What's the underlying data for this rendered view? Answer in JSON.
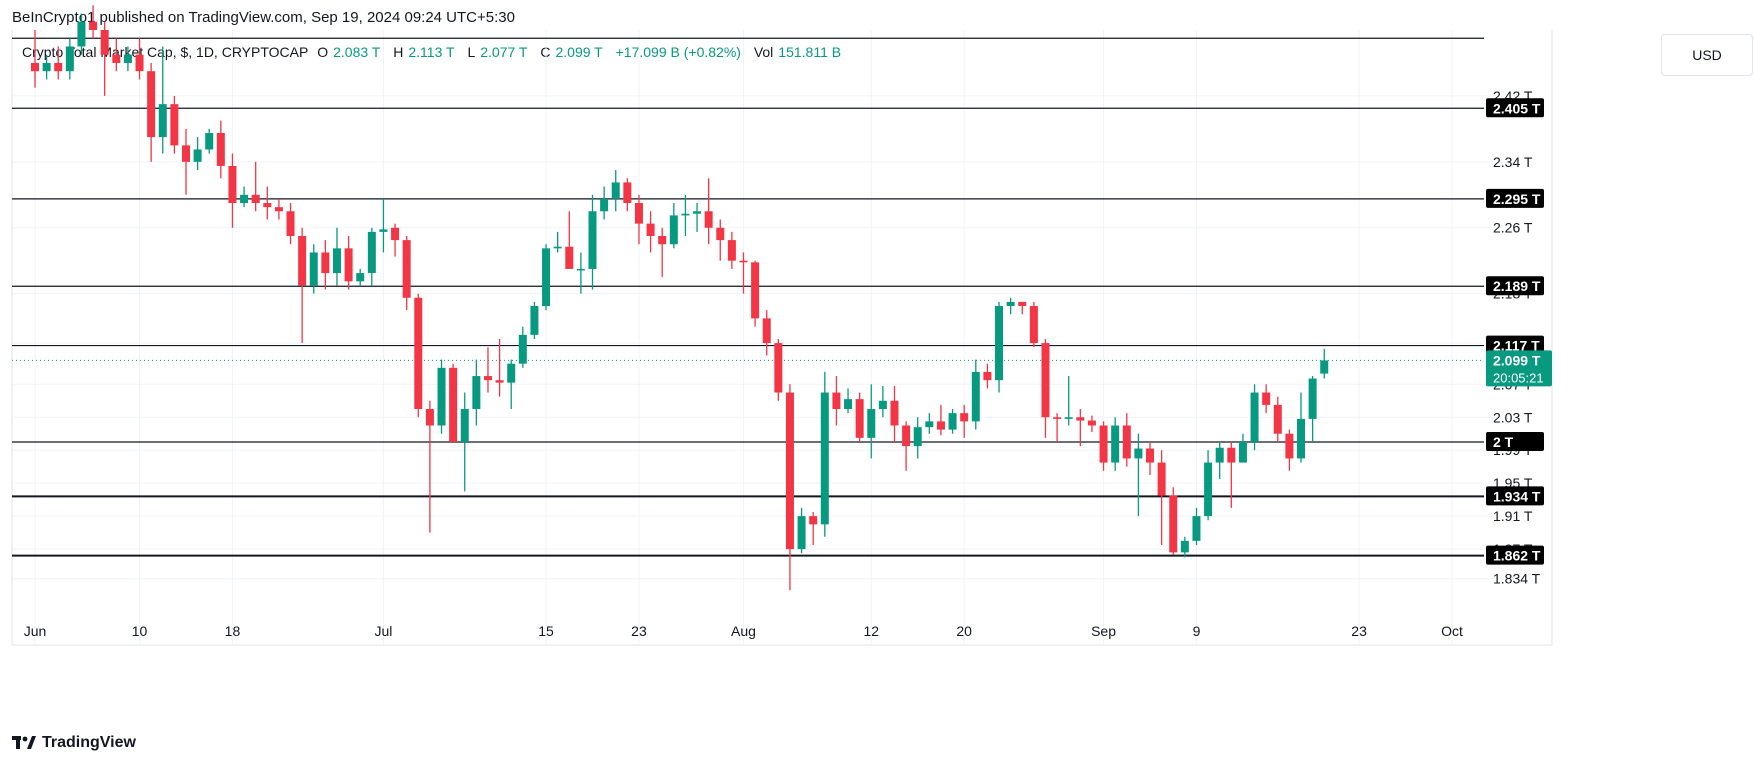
{
  "header": {
    "publisher": "BeInCrypto1 published on TradingView.com, Sep 19, 2024 09:24 UTC+5:30"
  },
  "legend": {
    "symbol": "Crypto Total Market Cap, $, 1D, CRYPTOCAP",
    "open_label": "O",
    "open": "2.083 T",
    "high_label": "H",
    "high": "2.113 T",
    "low_label": "L",
    "low": "2.077 T",
    "close_label": "C",
    "close": "2.099 T",
    "change": "+17.099 B (+0.82%)",
    "vol_label": "Vol",
    "vol": "151.811 B"
  },
  "currency": "USD",
  "footer": {
    "brand": "TradingView",
    "icon": "tradingview-logo-icon"
  },
  "colors": {
    "up": "#089981",
    "down": "#f23645",
    "line": "#131722",
    "grid": "#f0f3fa"
  },
  "chart_data": {
    "type": "candlestick",
    "title": "Crypto Total Market Cap, $, 1D, CRYPTOCAP",
    "ylabel": "USD",
    "ylim": [
      1.79,
      2.5
    ],
    "grid": true,
    "price_ticks": [
      "2.42 T",
      "2.34 T",
      "2.26 T",
      "2.18 T",
      "2.12 T",
      "2.07 T",
      "2.03 T",
      "1.99 T",
      "1.95 T",
      "1.91 T",
      "1.87 T",
      "1.834 T"
    ],
    "date_ticks": [
      {
        "label": "Jun",
        "date": "2024-06-01"
      },
      {
        "label": "10",
        "date": "2024-06-10"
      },
      {
        "label": "18",
        "date": "2024-06-18"
      },
      {
        "label": "Jul",
        "date": "2024-07-01"
      },
      {
        "label": "15",
        "date": "2024-07-15"
      },
      {
        "label": "23",
        "date": "2024-07-23"
      },
      {
        "label": "Aug",
        "date": "2024-08-01"
      },
      {
        "label": "12",
        "date": "2024-08-12"
      },
      {
        "label": "20",
        "date": "2024-08-20"
      },
      {
        "label": "Sep",
        "date": "2024-09-01"
      },
      {
        "label": "9",
        "date": "2024-09-09"
      },
      {
        "label": "23",
        "date": "2024-09-23"
      },
      {
        "label": "Oct",
        "date": "2024-10-01"
      }
    ],
    "horizontal_levels": [
      {
        "value": 2.405,
        "label": "2.405 T"
      },
      {
        "value": 2.295,
        "label": "2.295 T"
      },
      {
        "value": 2.189,
        "label": "2.189 T"
      },
      {
        "value": 2.117,
        "label": "2.117 T"
      },
      {
        "value": 2.0,
        "label": "2 T"
      },
      {
        "value": 1.934,
        "label": "1.934 T"
      },
      {
        "value": 1.862,
        "label": "1.862 T"
      }
    ],
    "top_level": 2.49,
    "current_price": {
      "value": 2.099,
      "label": "2.099 T",
      "countdown": "20:05:21"
    },
    "candles": [
      {
        "date": "2024-06-01",
        "o": 2.46,
        "h": 2.5,
        "l": 2.43,
        "c": 2.45
      },
      {
        "date": "2024-06-02",
        "o": 2.45,
        "h": 2.47,
        "l": 2.44,
        "c": 2.46
      },
      {
        "date": "2024-06-03",
        "o": 2.46,
        "h": 2.48,
        "l": 2.44,
        "c": 2.45
      },
      {
        "date": "2024-06-04",
        "o": 2.45,
        "h": 2.49,
        "l": 2.44,
        "c": 2.48
      },
      {
        "date": "2024-06-05",
        "o": 2.48,
        "h": 2.52,
        "l": 2.47,
        "c": 2.51
      },
      {
        "date": "2024-06-06",
        "o": 2.51,
        "h": 2.53,
        "l": 2.49,
        "c": 2.5
      },
      {
        "date": "2024-06-07",
        "o": 2.5,
        "h": 2.51,
        "l": 2.42,
        "c": 2.47
      },
      {
        "date": "2024-06-08",
        "o": 2.47,
        "h": 2.49,
        "l": 2.45,
        "c": 2.46
      },
      {
        "date": "2024-06-09",
        "o": 2.46,
        "h": 2.48,
        "l": 2.45,
        "c": 2.47
      },
      {
        "date": "2024-06-10",
        "o": 2.47,
        "h": 2.49,
        "l": 2.44,
        "c": 2.45
      },
      {
        "date": "2024-06-11",
        "o": 2.45,
        "h": 2.46,
        "l": 2.34,
        "c": 2.37
      },
      {
        "date": "2024-06-12",
        "o": 2.37,
        "h": 2.48,
        "l": 2.35,
        "c": 2.41
      },
      {
        "date": "2024-06-13",
        "o": 2.41,
        "h": 2.42,
        "l": 2.35,
        "c": 2.36
      },
      {
        "date": "2024-06-14",
        "o": 2.36,
        "h": 2.38,
        "l": 2.3,
        "c": 2.34
      },
      {
        "date": "2024-06-15",
        "o": 2.34,
        "h": 2.37,
        "l": 2.33,
        "c": 2.355
      },
      {
        "date": "2024-06-16",
        "o": 2.355,
        "h": 2.38,
        "l": 2.35,
        "c": 2.375
      },
      {
        "date": "2024-06-17",
        "o": 2.375,
        "h": 2.39,
        "l": 2.32,
        "c": 2.335
      },
      {
        "date": "2024-06-18",
        "o": 2.335,
        "h": 2.35,
        "l": 2.26,
        "c": 2.29
      },
      {
        "date": "2024-06-19",
        "o": 2.29,
        "h": 2.31,
        "l": 2.285,
        "c": 2.3
      },
      {
        "date": "2024-06-20",
        "o": 2.3,
        "h": 2.34,
        "l": 2.28,
        "c": 2.29
      },
      {
        "date": "2024-06-21",
        "o": 2.29,
        "h": 2.31,
        "l": 2.27,
        "c": 2.285
      },
      {
        "date": "2024-06-22",
        "o": 2.285,
        "h": 2.295,
        "l": 2.27,
        "c": 2.28
      },
      {
        "date": "2024-06-23",
        "o": 2.28,
        "h": 2.29,
        "l": 2.24,
        "c": 2.25
      },
      {
        "date": "2024-06-24",
        "o": 2.25,
        "h": 2.26,
        "l": 2.12,
        "c": 2.19
      },
      {
        "date": "2024-06-25",
        "o": 2.19,
        "h": 2.24,
        "l": 2.18,
        "c": 2.23
      },
      {
        "date": "2024-06-26",
        "o": 2.23,
        "h": 2.245,
        "l": 2.185,
        "c": 2.205
      },
      {
        "date": "2024-06-27",
        "o": 2.205,
        "h": 2.26,
        "l": 2.19,
        "c": 2.235
      },
      {
        "date": "2024-06-28",
        "o": 2.235,
        "h": 2.25,
        "l": 2.185,
        "c": 2.195
      },
      {
        "date": "2024-06-29",
        "o": 2.195,
        "h": 2.21,
        "l": 2.19,
        "c": 2.205
      },
      {
        "date": "2024-06-30",
        "o": 2.205,
        "h": 2.26,
        "l": 2.19,
        "c": 2.255
      },
      {
        "date": "2024-07-01",
        "o": 2.255,
        "h": 2.295,
        "l": 2.23,
        "c": 2.258
      },
      {
        "date": "2024-07-02",
        "o": 2.26,
        "h": 2.265,
        "l": 2.225,
        "c": 2.245
      },
      {
        "date": "2024-07-03",
        "o": 2.245,
        "h": 2.25,
        "l": 2.16,
        "c": 2.175
      },
      {
        "date": "2024-07-04",
        "o": 2.175,
        "h": 2.18,
        "l": 2.03,
        "c": 2.04
      },
      {
        "date": "2024-07-05",
        "o": 2.04,
        "h": 2.05,
        "l": 1.89,
        "c": 2.02
      },
      {
        "date": "2024-07-06",
        "o": 2.02,
        "h": 2.1,
        "l": 2.01,
        "c": 2.09
      },
      {
        "date": "2024-07-07",
        "o": 2.09,
        "h": 2.095,
        "l": 2.0,
        "c": 2.0
      },
      {
        "date": "2024-07-08",
        "o": 2.0,
        "h": 2.06,
        "l": 1.94,
        "c": 2.04
      },
      {
        "date": "2024-07-09",
        "o": 2.04,
        "h": 2.1,
        "l": 2.02,
        "c": 2.08
      },
      {
        "date": "2024-07-10",
        "o": 2.08,
        "h": 2.115,
        "l": 2.06,
        "c": 2.075
      },
      {
        "date": "2024-07-11",
        "o": 2.075,
        "h": 2.125,
        "l": 2.055,
        "c": 2.072
      },
      {
        "date": "2024-07-12",
        "o": 2.072,
        "h": 2.1,
        "l": 2.04,
        "c": 2.095
      },
      {
        "date": "2024-07-13",
        "o": 2.095,
        "h": 2.14,
        "l": 2.09,
        "c": 2.13
      },
      {
        "date": "2024-07-14",
        "o": 2.13,
        "h": 2.17,
        "l": 2.125,
        "c": 2.165
      },
      {
        "date": "2024-07-15",
        "o": 2.165,
        "h": 2.24,
        "l": 2.16,
        "c": 2.235
      },
      {
        "date": "2024-07-16",
        "o": 2.235,
        "h": 2.255,
        "l": 2.23,
        "c": 2.237
      },
      {
        "date": "2024-07-17",
        "o": 2.237,
        "h": 2.28,
        "l": 2.215,
        "c": 2.21
      },
      {
        "date": "2024-07-18",
        "o": 2.21,
        "h": 2.23,
        "l": 2.18,
        "c": 2.21
      },
      {
        "date": "2024-07-19",
        "o": 2.21,
        "h": 2.3,
        "l": 2.185,
        "c": 2.28
      },
      {
        "date": "2024-07-20",
        "o": 2.28,
        "h": 2.31,
        "l": 2.27,
        "c": 2.295
      },
      {
        "date": "2024-07-21",
        "o": 2.295,
        "h": 2.33,
        "l": 2.28,
        "c": 2.315
      },
      {
        "date": "2024-07-22",
        "o": 2.315,
        "h": 2.32,
        "l": 2.28,
        "c": 2.29
      },
      {
        "date": "2024-07-23",
        "o": 2.29,
        "h": 2.3,
        "l": 2.24,
        "c": 2.265
      },
      {
        "date": "2024-07-24",
        "o": 2.265,
        "h": 2.28,
        "l": 2.23,
        "c": 2.25
      },
      {
        "date": "2024-07-25",
        "o": 2.25,
        "h": 2.26,
        "l": 2.2,
        "c": 2.24
      },
      {
        "date": "2024-07-26",
        "o": 2.24,
        "h": 2.29,
        "l": 2.235,
        "c": 2.275
      },
      {
        "date": "2024-07-27",
        "o": 2.275,
        "h": 2.3,
        "l": 2.25,
        "c": 2.277
      },
      {
        "date": "2024-07-28",
        "o": 2.277,
        "h": 2.29,
        "l": 2.255,
        "c": 2.28
      },
      {
        "date": "2024-07-29",
        "o": 2.28,
        "h": 2.32,
        "l": 2.24,
        "c": 2.26
      },
      {
        "date": "2024-07-30",
        "o": 2.26,
        "h": 2.27,
        "l": 2.22,
        "c": 2.245
      },
      {
        "date": "2024-07-31",
        "o": 2.245,
        "h": 2.255,
        "l": 2.21,
        "c": 2.22
      },
      {
        "date": "2024-08-01",
        "o": 2.22,
        "h": 2.23,
        "l": 2.18,
        "c": 2.218
      },
      {
        "date": "2024-08-02",
        "o": 2.218,
        "h": 2.22,
        "l": 2.14,
        "c": 2.15
      },
      {
        "date": "2024-08-03",
        "o": 2.15,
        "h": 2.16,
        "l": 2.105,
        "c": 2.12
      },
      {
        "date": "2024-08-04",
        "o": 2.12,
        "h": 2.125,
        "l": 2.05,
        "c": 2.06
      },
      {
        "date": "2024-08-05",
        "o": 2.06,
        "h": 2.07,
        "l": 1.82,
        "c": 1.87
      },
      {
        "date": "2024-08-06",
        "o": 1.87,
        "h": 1.92,
        "l": 1.865,
        "c": 1.91
      },
      {
        "date": "2024-08-07",
        "o": 1.91,
        "h": 1.915,
        "l": 1.875,
        "c": 1.9
      },
      {
        "date": "2024-08-08",
        "o": 1.9,
        "h": 2.085,
        "l": 1.885,
        "c": 2.06
      },
      {
        "date": "2024-08-09",
        "o": 2.06,
        "h": 2.08,
        "l": 2.02,
        "c": 2.04
      },
      {
        "date": "2024-08-10",
        "o": 2.04,
        "h": 2.065,
        "l": 2.035,
        "c": 2.052
      },
      {
        "date": "2024-08-11",
        "o": 2.052,
        "h": 2.06,
        "l": 2.0,
        "c": 2.005
      },
      {
        "date": "2024-08-12",
        "o": 2.005,
        "h": 2.07,
        "l": 1.98,
        "c": 2.04
      },
      {
        "date": "2024-08-13",
        "o": 2.04,
        "h": 2.068,
        "l": 2.03,
        "c": 2.05
      },
      {
        "date": "2024-08-14",
        "o": 2.05,
        "h": 2.068,
        "l": 2.0,
        "c": 2.02
      },
      {
        "date": "2024-08-15",
        "o": 2.02,
        "h": 2.025,
        "l": 1.965,
        "c": 1.995
      },
      {
        "date": "2024-08-16",
        "o": 1.995,
        "h": 2.03,
        "l": 1.98,
        "c": 2.018
      },
      {
        "date": "2024-08-17",
        "o": 2.018,
        "h": 2.035,
        "l": 2.01,
        "c": 2.025
      },
      {
        "date": "2024-08-18",
        "o": 2.025,
        "h": 2.045,
        "l": 2.008,
        "c": 2.015
      },
      {
        "date": "2024-08-19",
        "o": 2.015,
        "h": 2.04,
        "l": 2.01,
        "c": 2.035
      },
      {
        "date": "2024-08-20",
        "o": 2.035,
        "h": 2.045,
        "l": 2.005,
        "c": 2.025
      },
      {
        "date": "2024-08-21",
        "o": 2.025,
        "h": 2.1,
        "l": 2.015,
        "c": 2.085
      },
      {
        "date": "2024-08-22",
        "o": 2.085,
        "h": 2.095,
        "l": 2.065,
        "c": 2.075
      },
      {
        "date": "2024-08-23",
        "o": 2.075,
        "h": 2.17,
        "l": 2.06,
        "c": 2.165
      },
      {
        "date": "2024-08-24",
        "o": 2.165,
        "h": 2.175,
        "l": 2.155,
        "c": 2.17
      },
      {
        "date": "2024-08-25",
        "o": 2.17,
        "h": 2.17,
        "l": 2.155,
        "c": 2.165
      },
      {
        "date": "2024-08-26",
        "o": 2.165,
        "h": 2.17,
        "l": 2.115,
        "c": 2.12
      },
      {
        "date": "2024-08-27",
        "o": 2.12,
        "h": 2.125,
        "l": 2.005,
        "c": 2.03
      },
      {
        "date": "2024-08-28",
        "o": 2.03,
        "h": 2.035,
        "l": 2.0,
        "c": 2.028
      },
      {
        "date": "2024-08-29",
        "o": 2.028,
        "h": 2.08,
        "l": 2.02,
        "c": 2.03
      },
      {
        "date": "2024-08-30",
        "o": 2.03,
        "h": 2.04,
        "l": 1.995,
        "c": 2.026
      },
      {
        "date": "2024-08-31",
        "o": 2.026,
        "h": 2.032,
        "l": 2.012,
        "c": 2.02
      },
      {
        "date": "2024-09-01",
        "o": 2.02,
        "h": 2.025,
        "l": 1.965,
        "c": 1.975
      },
      {
        "date": "2024-09-02",
        "o": 1.975,
        "h": 2.03,
        "l": 1.965,
        "c": 2.02
      },
      {
        "date": "2024-09-03",
        "o": 2.02,
        "h": 2.035,
        "l": 1.97,
        "c": 1.98
      },
      {
        "date": "2024-09-04",
        "o": 1.98,
        "h": 2.01,
        "l": 1.91,
        "c": 1.992
      },
      {
        "date": "2024-09-05",
        "o": 1.992,
        "h": 2.0,
        "l": 1.96,
        "c": 1.975
      },
      {
        "date": "2024-09-06",
        "o": 1.975,
        "h": 1.99,
        "l": 1.875,
        "c": 1.935
      },
      {
        "date": "2024-09-07",
        "o": 1.935,
        "h": 1.945,
        "l": 1.863,
        "c": 1.866
      },
      {
        "date": "2024-09-08",
        "o": 1.866,
        "h": 1.885,
        "l": 1.86,
        "c": 1.88
      },
      {
        "date": "2024-09-09",
        "o": 1.88,
        "h": 1.92,
        "l": 1.875,
        "c": 1.91
      },
      {
        "date": "2024-09-10",
        "o": 1.91,
        "h": 1.99,
        "l": 1.905,
        "c": 1.975
      },
      {
        "date": "2024-09-11",
        "o": 1.975,
        "h": 2.0,
        "l": 1.955,
        "c": 1.993
      },
      {
        "date": "2024-09-12",
        "o": 1.993,
        "h": 2.0,
        "l": 1.92,
        "c": 1.975
      },
      {
        "date": "2024-09-13",
        "o": 1.975,
        "h": 2.01,
        "l": 1.975,
        "c": 2.0
      },
      {
        "date": "2024-09-14",
        "o": 2.0,
        "h": 2.07,
        "l": 1.99,
        "c": 2.06
      },
      {
        "date": "2024-09-15",
        "o": 2.06,
        "h": 2.07,
        "l": 2.035,
        "c": 2.045
      },
      {
        "date": "2024-09-16",
        "o": 2.045,
        "h": 2.055,
        "l": 2.0,
        "c": 2.01
      },
      {
        "date": "2024-09-17",
        "o": 2.01,
        "h": 2.015,
        "l": 1.965,
        "c": 1.98
      },
      {
        "date": "2024-09-18",
        "o": 1.98,
        "h": 2.06,
        "l": 1.975,
        "c": 2.028
      },
      {
        "date": "2024-09-19",
        "o": 2.028,
        "h": 2.08,
        "l": 2.0,
        "c": 2.077
      },
      {
        "date": "2024-09-20",
        "o": 2.083,
        "h": 2.113,
        "l": 2.077,
        "c": 2.099
      }
    ]
  }
}
